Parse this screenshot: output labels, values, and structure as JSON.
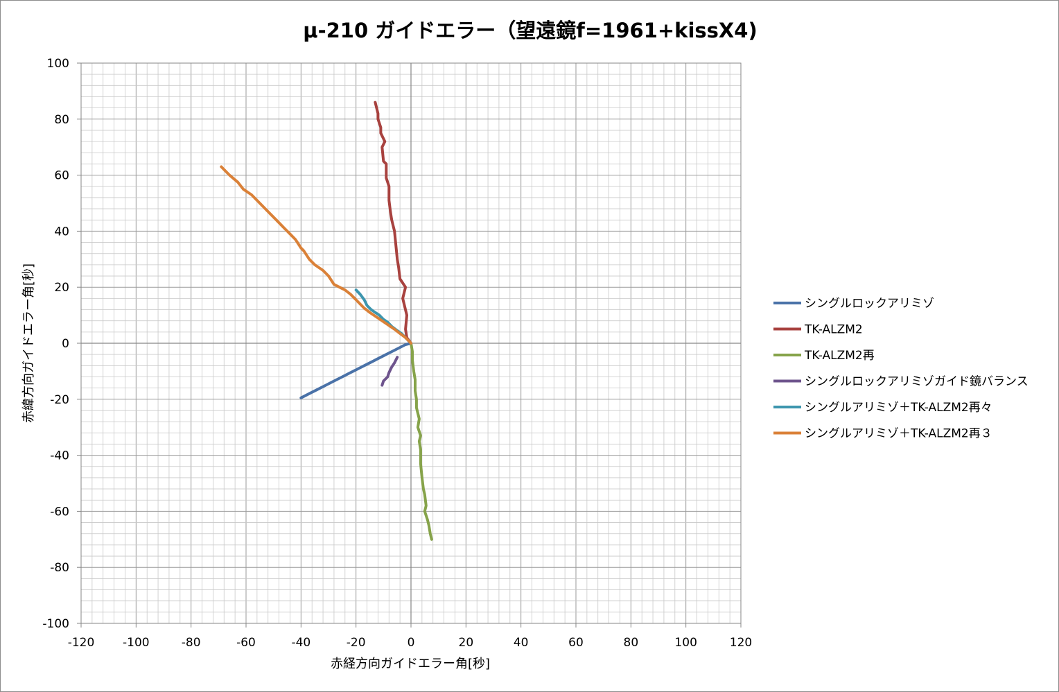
{
  "chart_data": {
    "type": "line",
    "title": "μ-210 ガイドエラー（望遠鏡f=1961+kissX4)",
    "xlabel": "赤経方向ガイドエラー角[秒]",
    "ylabel": "赤緯方向ガイドエラー角[秒]",
    "xlim": [
      -120,
      120
    ],
    "ylim": [
      -100,
      100
    ],
    "x_ticks": [
      -120,
      -100,
      -80,
      -60,
      -40,
      -20,
      0,
      20,
      40,
      60,
      80,
      100,
      120
    ],
    "y_ticks": [
      100,
      80,
      60,
      40,
      20,
      0,
      -20,
      -40,
      -60,
      -80,
      -100
    ],
    "grid": "major+minor",
    "legend_position": "right",
    "series": [
      {
        "name": "シングルロックアリミゾ",
        "color": "#4a72a8",
        "x": [
          -40,
          -37,
          -34,
          -31,
          -28,
          -25,
          -22,
          -19,
          -17,
          -14,
          -12,
          -10,
          -8,
          -6,
          -4,
          -3,
          -2,
          0
        ],
        "y": [
          -19.5,
          -18,
          -16.5,
          -15,
          -13.5,
          -12,
          -10.5,
          -9,
          -8,
          -6.5,
          -5.5,
          -4.5,
          -3.5,
          -2.5,
          -1.5,
          -1,
          -0.5,
          0
        ]
      },
      {
        "name": "TK-ALZM2",
        "color": "#a8423f",
        "x": [
          0,
          -1.5,
          -2,
          -1.5,
          -3,
          -2,
          -4,
          -4.5,
          -5,
          -5.5,
          -6,
          -7,
          -7.5,
          -8,
          -8,
          -9,
          -9,
          -10,
          -10.5,
          -9.5,
          -11,
          -11,
          -12,
          -12,
          -13
        ],
        "y": [
          0,
          2,
          5,
          10,
          16,
          20,
          23,
          27,
          30,
          35,
          40,
          44,
          47,
          51,
          56,
          59,
          64,
          65,
          70,
          72,
          75,
          77,
          80,
          82,
          86
        ]
      },
      {
        "name": "TK-ALZM2再",
        "color": "#86a34a",
        "x": [
          0,
          0.5,
          0.5,
          1,
          1.5,
          1.5,
          2,
          2,
          3,
          2.5,
          3.5,
          3,
          3.5,
          3.5,
          4,
          4.5,
          5,
          5.5,
          5,
          6,
          6.5,
          7,
          7.5
        ],
        "y": [
          0,
          -3,
          -6,
          -10,
          -13,
          -17,
          -20,
          -23,
          -27,
          -30,
          -33,
          -35,
          -38,
          -43,
          -48,
          -52,
          -54,
          -58,
          -60,
          -63,
          -65,
          -68,
          -70
        ]
      },
      {
        "name": "シングルロックアリミゾガイド鏡バランス",
        "color": "#6e548d",
        "x": [
          -5,
          -6,
          -7,
          -8,
          -8.5,
          -9,
          -10,
          -10.5
        ],
        "y": [
          -5,
          -7,
          -8.5,
          -10.5,
          -12,
          -12.5,
          -13.5,
          -15
        ]
      },
      {
        "name": "シングルアリミゾ＋TK-ALZM2再々",
        "color": "#3d96ae",
        "x": [
          -20,
          -18.5,
          -17,
          -16,
          -14.5,
          -13,
          -11.5,
          -10,
          -8.5,
          -7,
          -5,
          -3.5,
          -2,
          0
        ],
        "y": [
          19,
          17.5,
          15.5,
          13.5,
          12,
          11,
          10,
          8.5,
          7.5,
          6,
          4.5,
          3.5,
          2,
          0
        ]
      },
      {
        "name": "シングルアリミゾ＋TK-ALZM2再３",
        "color": "#da8138",
        "x": [
          -69,
          -66,
          -63,
          -61,
          -58,
          -55,
          -52,
          -49,
          -46,
          -44,
          -42,
          -40,
          -39,
          -37,
          -35,
          -32,
          -30,
          -28,
          -24,
          -22,
          -20,
          -17,
          -15,
          -12,
          -9,
          -6,
          -4,
          -2,
          0
        ],
        "y": [
          63,
          60,
          57.5,
          55,
          53,
          50,
          47,
          44,
          41,
          39,
          37,
          34,
          33,
          30,
          28,
          26,
          24,
          21,
          19,
          17.5,
          15.5,
          12.5,
          11,
          9,
          7,
          5,
          3.5,
          2,
          0
        ]
      }
    ]
  }
}
